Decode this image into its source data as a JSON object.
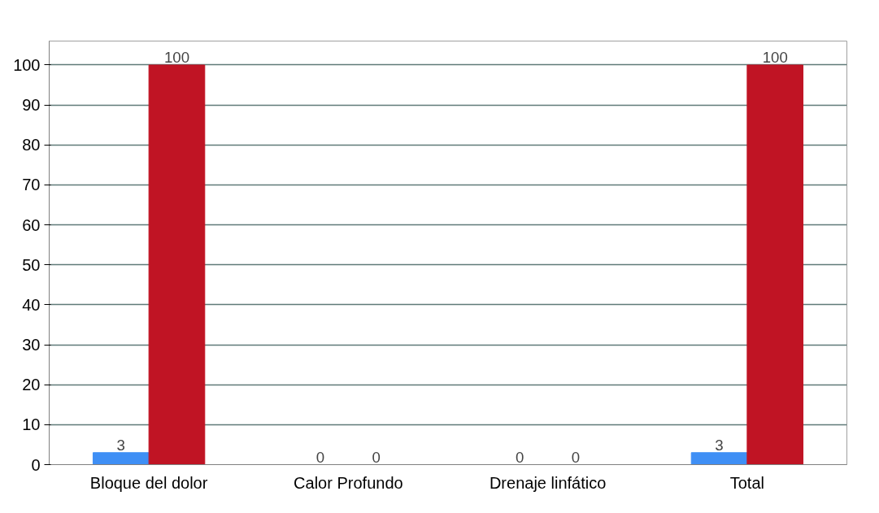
{
  "chart_data": {
    "type": "bar",
    "categories": [
      "Bloque del dolor",
      "Calor Profundo",
      "Drenaje linfático",
      "Total"
    ],
    "series": [
      {
        "color": "#3f8ff5",
        "values": [
          3,
          0,
          0,
          3
        ]
      },
      {
        "color": "#c01424",
        "values": [
          100,
          0,
          0,
          100
        ]
      }
    ],
    "ylim": [
      0,
      106
    ],
    "yticks": [
      0,
      10,
      20,
      30,
      40,
      50,
      60,
      70,
      80,
      90,
      100
    ],
    "grid": "y",
    "data_labels": true
  }
}
